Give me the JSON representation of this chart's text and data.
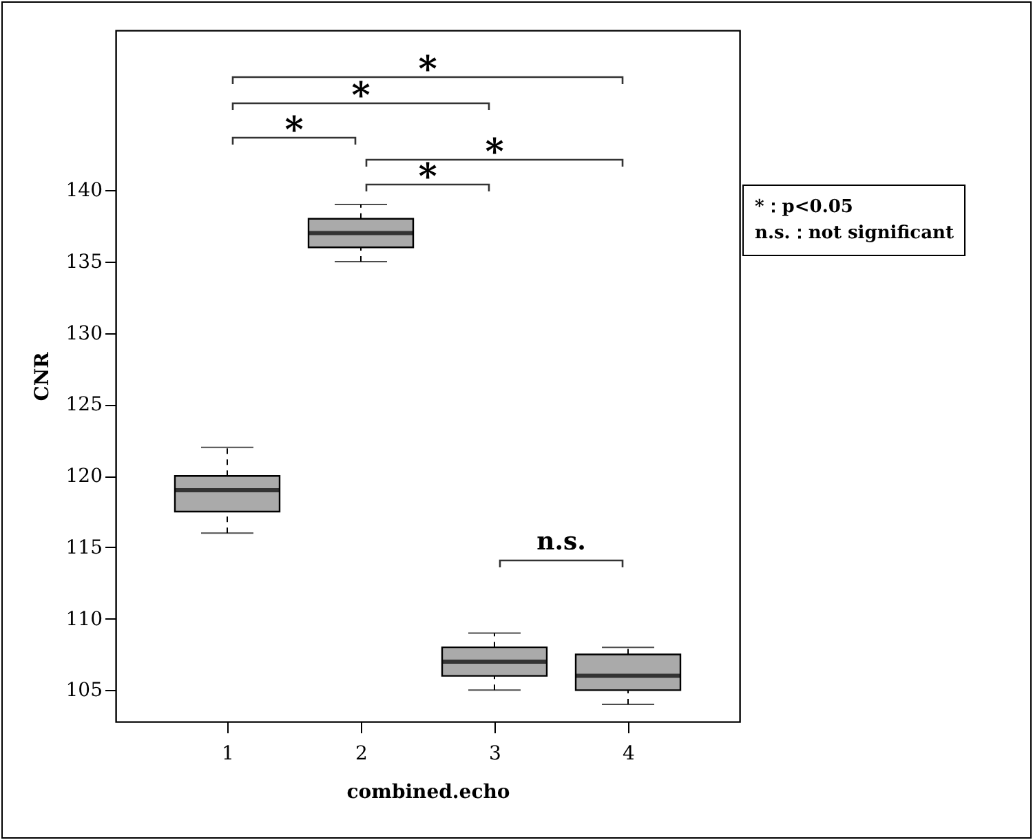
{
  "chart_data": {
    "type": "box",
    "xlabel": "combined.echo",
    "ylabel": "CNR",
    "categories": [
      "1",
      "2",
      "3",
      "4"
    ],
    "boxes": [
      {
        "low": 116,
        "q1": 117.5,
        "median": 119,
        "q3": 120,
        "high": 122
      },
      {
        "low": 135,
        "q1": 136,
        "median": 137,
        "q3": 138,
        "high": 139
      },
      {
        "low": 105,
        "q1": 106,
        "median": 107,
        "q3": 108,
        "high": 109
      },
      {
        "low": 104,
        "q1": 105,
        "median": 106,
        "q3": 107.5,
        "high": 108
      }
    ],
    "color": "#aaaaaa",
    "ylim": [
      102.8,
      151.2
    ],
    "yticks": [
      105,
      110,
      115,
      120,
      125,
      130,
      135,
      140
    ],
    "grid": false,
    "annotations": [
      "*",
      "*",
      "*",
      "*",
      "*",
      "n.s.",
      "*：p<0.05",
      "n.s.：not significant"
    ]
  }
}
